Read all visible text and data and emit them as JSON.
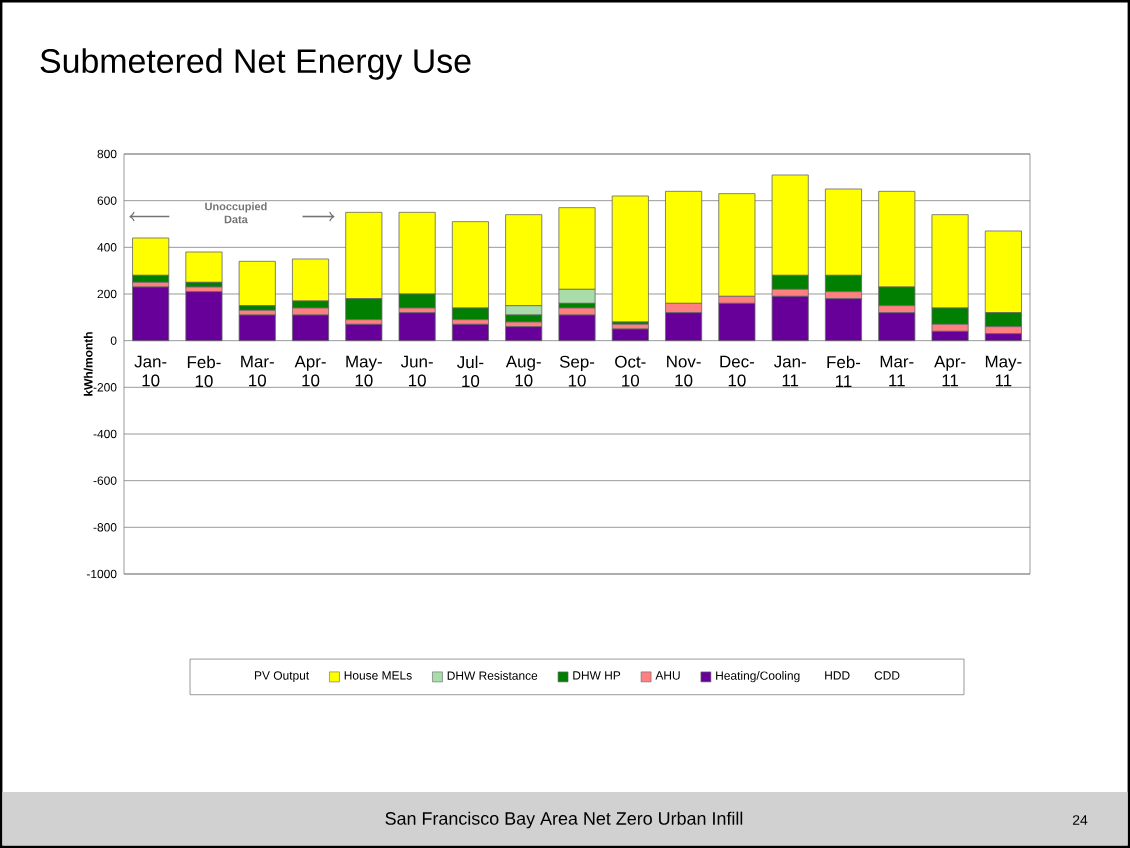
{
  "chart_data": {
    "type": "bar",
    "stacked": true,
    "title": "Submetered Net Energy Use",
    "ylabel": "kWh/month",
    "categories": [
      "Jan-10",
      "Feb-10",
      "Mar-10",
      "Apr-10",
      "May-10",
      "Jun-10",
      "Jul-10",
      "Aug-10",
      "Sep-10",
      "Oct-10",
      "Nov-10",
      "Dec-10",
      "Jan-11",
      "Feb-11",
      "Mar-11",
      "Apr-11",
      "May-11"
    ],
    "series": [
      {
        "name": "CDD",
        "values": [
          null,
          null,
          null,
          null,
          null,
          null,
          null,
          null,
          null,
          null,
          null,
          null,
          null,
          null,
          null,
          null,
          null
        ]
      },
      {
        "name": "HDD",
        "values": [
          null,
          null,
          null,
          null,
          null,
          null,
          null,
          null,
          null,
          null,
          null,
          null,
          null,
          null,
          null,
          null,
          null
        ]
      },
      {
        "name": "Heating/Cooling",
        "color": "#660099",
        "values": [
          230,
          210,
          110,
          110,
          70,
          120,
          70,
          60,
          110,
          50,
          120,
          160,
          190,
          180,
          120,
          40,
          30
        ]
      },
      {
        "name": "AHU",
        "color": "#ff8080",
        "values": [
          20,
          20,
          20,
          30,
          20,
          20,
          20,
          20,
          30,
          20,
          40,
          30,
          30,
          30,
          30,
          30,
          30
        ]
      },
      {
        "name": "DHW HP",
        "color": "#007f00",
        "values": [
          30,
          20,
          20,
          30,
          90,
          60,
          50,
          30,
          20,
          10,
          0,
          0,
          60,
          70,
          80,
          70,
          60
        ]
      },
      {
        "name": "DHW Resistance",
        "color": "#a8dca8",
        "values": [
          0,
          0,
          0,
          0,
          0,
          0,
          0,
          40,
          60,
          0,
          0,
          0,
          0,
          0,
          0,
          0,
          0
        ]
      },
      {
        "name": "House MELs",
        "color": "#ffff00",
        "values": [
          160,
          130,
          190,
          180,
          370,
          350,
          370,
          390,
          350,
          540,
          480,
          440,
          430,
          370,
          410,
          400,
          350
        ]
      },
      {
        "name": "PV Output",
        "values": [
          null,
          null,
          null,
          null,
          null,
          null,
          null,
          null,
          null,
          null,
          null,
          null,
          null,
          null,
          null,
          null,
          null
        ]
      }
    ],
    "ylim": [
      -1000,
      800
    ],
    "yticks": [
      -1000,
      -800,
      -600,
      -400,
      -200,
      0,
      200,
      400,
      600,
      800
    ],
    "grid": "y",
    "legend": "bottom",
    "annotations": [
      "Unoccupied Data",
      "San Francisco Bay Area Net Zero Urban Infill",
      "24"
    ]
  }
}
